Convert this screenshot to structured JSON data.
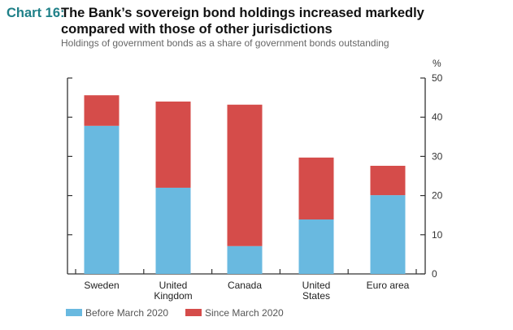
{
  "header": {
    "chart_label": "Chart 16:",
    "title": "The Bank’s sovereign bond holdings increased markedly compared with those of other jurisdictions",
    "subtitle": "Holdings of government bonds as a share of government bonds outstanding"
  },
  "colors": {
    "before": "#69b9e0",
    "since": "#d54c4a",
    "title_accent": "#1f8088",
    "axis": "#333333"
  },
  "chart_data": {
    "type": "bar",
    "stacked": true,
    "title": "The Bank’s sovereign bond holdings increased markedly compared with those of other jurisdictions",
    "subtitle": "Holdings of government bonds as a share of government bonds outstanding",
    "categories": [
      {
        "label_lines": [
          "Sweden"
        ]
      },
      {
        "label_lines": [
          "United",
          "Kingdom"
        ]
      },
      {
        "label_lines": [
          "Canada"
        ]
      },
      {
        "label_lines": [
          "United",
          "States"
        ]
      },
      {
        "label_lines": [
          "Euro area"
        ]
      }
    ],
    "series": [
      {
        "name": "Before March 2020",
        "color_key": "before",
        "values": [
          37.8,
          22.0,
          7.1,
          13.9,
          20.1
        ]
      },
      {
        "name": "Since March 2020",
        "color_key": "since",
        "values": [
          7.8,
          22.0,
          36.1,
          15.8,
          7.5
        ]
      }
    ],
    "xlabel": "",
    "ylabel": "%",
    "ylim": [
      0,
      50
    ],
    "yticks": [
      0,
      10,
      20,
      30,
      40,
      50
    ],
    "y_axis_side": "right",
    "grid": false,
    "legend_position": "bottom-left"
  }
}
